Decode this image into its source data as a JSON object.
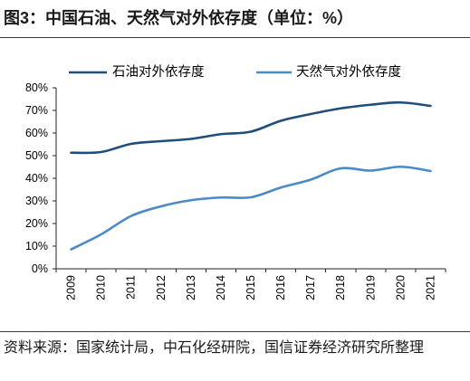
{
  "chart_data": {
    "type": "line",
    "title": "图3：中国石油、天然气对外依存度（单位：%）",
    "categories": [
      "2009",
      "2010",
      "2011",
      "2012",
      "2013",
      "2014",
      "2015",
      "2016",
      "2017",
      "2018",
      "2019",
      "2020",
      "2021"
    ],
    "series": [
      {
        "name": "石油对外依存度",
        "color": "#1F4E79",
        "values": [
          51.3,
          51.6,
          55.2,
          56.4,
          57.4,
          59.5,
          60.6,
          65.4,
          68.4,
          70.9,
          72.5,
          73.5,
          72.0
        ]
      },
      {
        "name": "天然气对外依存度",
        "color": "#4A8AC6",
        "values": [
          8.6,
          15.2,
          23.3,
          27.6,
          30.3,
          31.5,
          31.6,
          35.9,
          39.4,
          44.4,
          43.4,
          45.1,
          43.2
        ]
      }
    ],
    "ylim": [
      0,
      80
    ],
    "yticks": [
      0,
      10,
      20,
      30,
      40,
      50,
      60,
      70,
      80
    ],
    "ytick_labels": [
      "0%",
      "10%",
      "20%",
      "30%",
      "40%",
      "50%",
      "60%",
      "70%",
      "80%"
    ],
    "legend": "top",
    "grid": false
  },
  "source_note": "资料来源：国家统计局，中石化经研院，国信证券经济研究所整理"
}
